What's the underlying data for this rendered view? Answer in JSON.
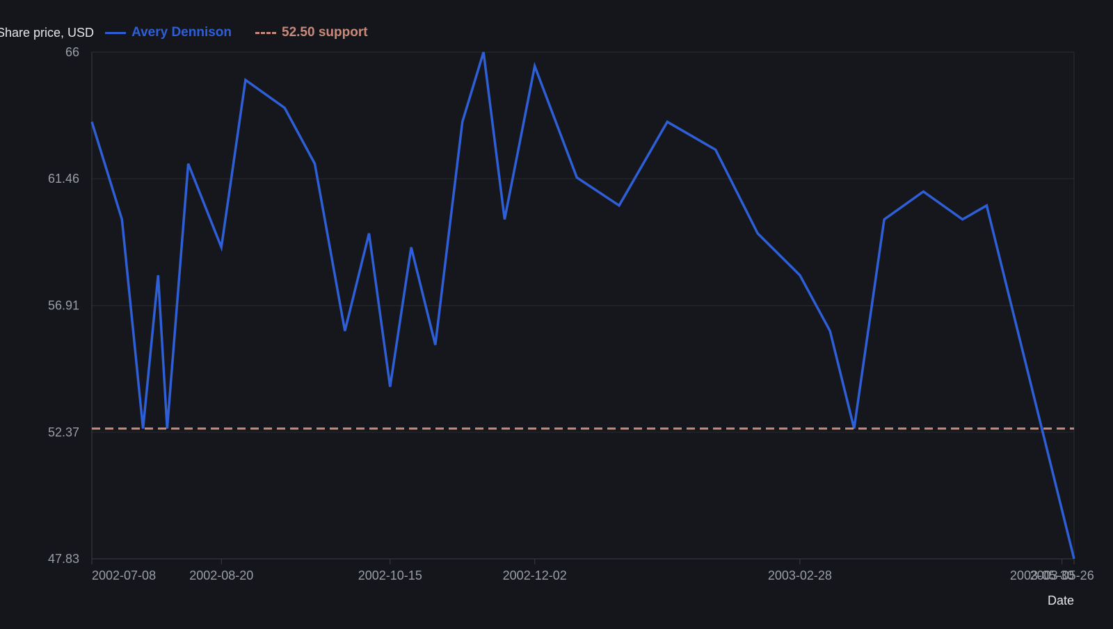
{
  "theme": {
    "background": "#14161b",
    "plot_background": "#15171c",
    "grid_color": "#2a2d33",
    "axis_color": "#3a3d44",
    "tick_text_color": "#9a9ea6",
    "label_text_color": "#e4e6eb"
  },
  "chart_data": {
    "type": "line",
    "title": "",
    "xlabel": "Date",
    "ylabel": "Share price, USD",
    "ylim": [
      47.83,
      66
    ],
    "xlim": [
      "2002-07-08",
      "2003-05-30"
    ],
    "yticks": [
      47.83,
      52.37,
      56.91,
      61.46,
      66
    ],
    "ytick_labels": [
      "47.83",
      "52.37",
      "56.91",
      "61.46",
      "66"
    ],
    "xticks": [
      "2002-07-08",
      "2002-08-20",
      "2002-10-15",
      "2002-12-02",
      "2003-02-28",
      "2003-05-26",
      "2003-05-30"
    ],
    "xtick_labels": [
      "2002-07-08",
      "2002-08-20",
      "2002-10-15",
      "2002-12-02",
      "2003-02-28",
      "2003-05-26",
      "2003-05-30"
    ],
    "grid": true,
    "legend_position": "top-left",
    "series": [
      {
        "name": "Avery Dennison",
        "color": "#2f5fd6",
        "style": "solid",
        "points": [
          {
            "x": "2002-07-08",
            "y": 63.5
          },
          {
            "x": "2002-07-18",
            "y": 60.0
          },
          {
            "x": "2002-07-25",
            "y": 52.5
          },
          {
            "x": "2002-07-30",
            "y": 58.0
          },
          {
            "x": "2002-08-02",
            "y": 52.5
          },
          {
            "x": "2002-08-09",
            "y": 62.0
          },
          {
            "x": "2002-08-20",
            "y": 59.0
          },
          {
            "x": "2002-08-28",
            "y": 65.0
          },
          {
            "x": "2002-09-10",
            "y": 64.0
          },
          {
            "x": "2002-09-20",
            "y": 62.0
          },
          {
            "x": "2002-09-30",
            "y": 56.0
          },
          {
            "x": "2002-10-08",
            "y": 59.5
          },
          {
            "x": "2002-10-15",
            "y": 54.0
          },
          {
            "x": "2002-10-22",
            "y": 59.0
          },
          {
            "x": "2002-10-30",
            "y": 55.5
          },
          {
            "x": "2002-11-08",
            "y": 63.5
          },
          {
            "x": "2002-11-15",
            "y": 66.0
          },
          {
            "x": "2002-11-22",
            "y": 60.0
          },
          {
            "x": "2002-12-02",
            "y": 65.5
          },
          {
            "x": "2002-12-16",
            "y": 61.5
          },
          {
            "x": "2002-12-30",
            "y": 60.5
          },
          {
            "x": "2003-01-15",
            "y": 63.5
          },
          {
            "x": "2003-01-31",
            "y": 62.5
          },
          {
            "x": "2003-02-14",
            "y": 59.5
          },
          {
            "x": "2003-02-28",
            "y": 58.0
          },
          {
            "x": "2003-03-10",
            "y": 56.0
          },
          {
            "x": "2003-03-18",
            "y": 52.5
          },
          {
            "x": "2003-03-28",
            "y": 60.0
          },
          {
            "x": "2003-04-10",
            "y": 61.0
          },
          {
            "x": "2003-04-23",
            "y": 60.0
          },
          {
            "x": "2003-05-01",
            "y": 60.5
          },
          {
            "x": "2003-05-30",
            "y": 47.83
          }
        ]
      },
      {
        "name": "52.50 support",
        "color": "#c98a7a",
        "style": "dashed",
        "points": [
          {
            "x": "2002-07-08",
            "y": 52.5
          },
          {
            "x": "2003-05-30",
            "y": 52.5
          }
        ]
      }
    ]
  }
}
